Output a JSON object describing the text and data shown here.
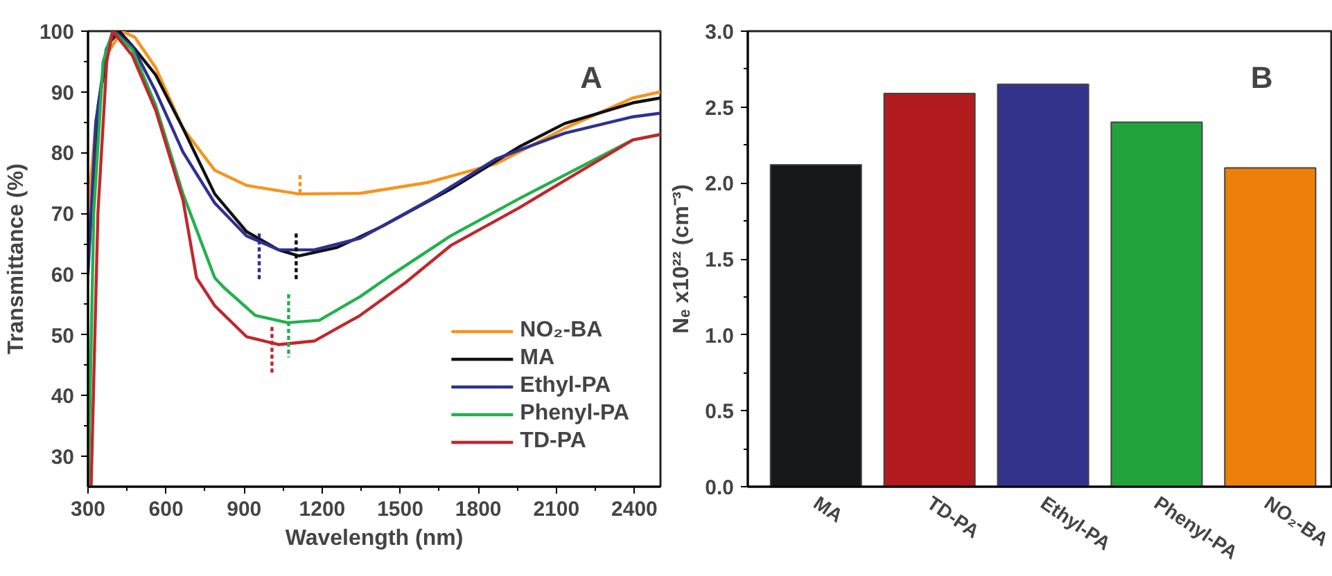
{
  "chart_data": [
    {
      "type": "line",
      "xlabel": "Wavelength (nm)",
      "ylabel": "Transmittance (%)",
      "annotations": [
        "A"
      ],
      "xlim": [
        300,
        2500
      ],
      "xticks": [
        300,
        600,
        900,
        1200,
        1500,
        1800,
        2100,
        2400
      ],
      "ylim": [
        25,
        100
      ],
      "yticks": [
        30,
        40,
        50,
        60,
        70,
        80,
        90,
        100
      ],
      "grid": false,
      "legend": "bottom right",
      "line_style": "solid",
      "series": [
        {
          "name": "NO₂-BA",
          "color": "#f7941d",
          "x": [
            300,
            330,
            370,
            429,
            480,
            560,
            665,
            787,
            909,
            1110,
            1346,
            1608,
            1870,
            2132,
            2394,
            2500
          ],
          "values": [
            70.2,
            85,
            96,
            100,
            99,
            94,
            84,
            77.1,
            74.6,
            73.2,
            73.3,
            75.1,
            78.2,
            84,
            89,
            90
          ]
        },
        {
          "name": "MA",
          "color": "#111111",
          "x": [
            300,
            340,
            380,
            420,
            472,
            560,
            665,
            787,
            909,
            1032,
            1110,
            1258,
            1432,
            1694,
            1955,
            2132,
            2394,
            2500
          ],
          "values": [
            62,
            88,
            98,
            100,
            97.5,
            92.8,
            84,
            73.2,
            67,
            64,
            63,
            64.4,
            67.9,
            74,
            80.9,
            84.8,
            88.2,
            89
          ]
        },
        {
          "name": "Ethyl-PA",
          "color": "#2e3192",
          "x": [
            300,
            330,
            370,
            402,
            472,
            560,
            665,
            787,
            909,
            1032,
            1170,
            1346,
            1608,
            1870,
            2132,
            2394,
            2500
          ],
          "values": [
            60,
            85,
            97,
            100,
            97.4,
            90.1,
            80.1,
            71.7,
            66.3,
            64,
            64,
            65.9,
            72.1,
            79,
            83.2,
            85.9,
            86.5
          ]
        },
        {
          "name": "Phenyl-PA",
          "color": "#22b14c",
          "x": [
            301,
            322,
            358,
            395,
            470,
            560,
            665,
            787,
            822,
            943,
            1067,
            1189,
            1346,
            1450,
            1694,
            1956,
            2394,
            2500
          ],
          "values": [
            25,
            70,
            95,
            100,
            97,
            87.8,
            73.2,
            59.4,
            57.8,
            53.2,
            52,
            52.4,
            56.3,
            59.4,
            66.3,
            72.4,
            82.1,
            83
          ]
        },
        {
          "name": "TD-PA",
          "color": "#c1272d",
          "x": [
            312,
            338,
            372,
            395,
            470,
            560,
            665,
            717,
            787,
            909,
            1032,
            1171,
            1346,
            1520,
            1694,
            1956,
            2394,
            2500
          ],
          "values": [
            25,
            70,
            95,
            100,
            96,
            87,
            72.2,
            59.4,
            54.8,
            49.7,
            48.4,
            49,
            53.2,
            58.6,
            64.7,
            70.9,
            82.1,
            83
          ]
        },
        {
          "color": "#f7941d",
          "line_style": "dashed",
          "x": [
            1115,
            1115
          ],
          "values": [
            76.3,
            73.2
          ]
        },
        {
          "color": "#111111",
          "line_style": "dashed",
          "x": [
            1100,
            1100
          ],
          "values": [
            66.7,
            59
          ]
        },
        {
          "color": "#2e3192",
          "line_style": "dashed",
          "x": [
            958,
            958
          ],
          "values": [
            66.7,
            58.7
          ]
        },
        {
          "color": "#22b14c",
          "line_style": "dashed",
          "x": [
            1071,
            1071
          ],
          "values": [
            56.7,
            46.3
          ]
        },
        {
          "color": "#c1272d",
          "line_style": "dashed",
          "x": [
            1007,
            1007
          ],
          "values": [
            51.3,
            43.6
          ]
        }
      ]
    },
    {
      "type": "bar",
      "ylabel": "Nₑ x10²² (cm⁻³)",
      "annotations": [
        "B"
      ],
      "categories": [
        "MA",
        "TD-PA",
        "Ethyl-PA",
        "Phenyl-PA",
        "NO₂-BA"
      ],
      "values": [
        2.12,
        2.59,
        2.65,
        2.4,
        2.1
      ],
      "colors": [
        "#161718",
        "#b11b1e",
        "#33338b",
        "#22a33c",
        "#ee7f0a"
      ],
      "ylim": [
        0,
        3
      ],
      "yticks": [
        {
          "value": 0,
          "label": "0.0"
        },
        0.5,
        {
          "value": 1,
          "label": "1.0"
        },
        1.5,
        {
          "value": 2,
          "label": "2.0"
        },
        2.5,
        {
          "value": 3,
          "label": "3.0"
        }
      ],
      "grid": false
    }
  ]
}
